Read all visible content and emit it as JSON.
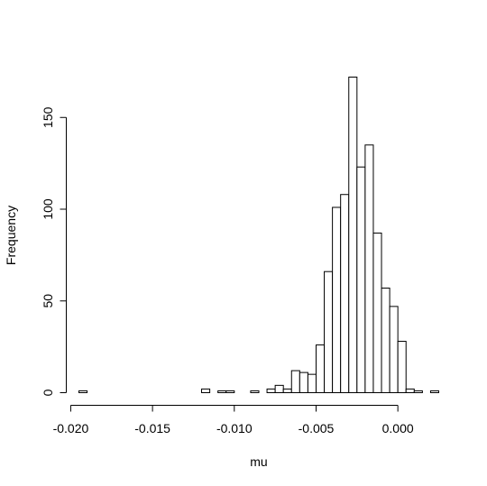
{
  "chart_data": {
    "type": "histogram",
    "title": "",
    "xlabel": "mu",
    "ylabel": "Frequency",
    "xlim": [
      -0.0195,
      0.0025
    ],
    "ylim": [
      0,
      172
    ],
    "bin_width": 0.0005,
    "x_ticks": [
      -0.02,
      -0.015,
      -0.01,
      -0.005,
      0.0
    ],
    "x_tick_labels": [
      "-0.020",
      "-0.015",
      "-0.010",
      "-0.005",
      "0.000"
    ],
    "y_ticks": [
      0,
      50,
      100,
      150
    ],
    "y_tick_labels": [
      "0",
      "50",
      "100",
      "150"
    ],
    "grid": false,
    "bins": [
      {
        "x0": -0.0195,
        "x1": -0.019,
        "count": 1
      },
      {
        "x0": -0.019,
        "x1": -0.0185,
        "count": 0
      },
      {
        "x0": -0.0185,
        "x1": -0.018,
        "count": 0
      },
      {
        "x0": -0.018,
        "x1": -0.0175,
        "count": 0
      },
      {
        "x0": -0.0175,
        "x1": -0.017,
        "count": 0
      },
      {
        "x0": -0.017,
        "x1": -0.0165,
        "count": 0
      },
      {
        "x0": -0.0165,
        "x1": -0.016,
        "count": 0
      },
      {
        "x0": -0.016,
        "x1": -0.0155,
        "count": 0
      },
      {
        "x0": -0.0155,
        "x1": -0.015,
        "count": 0
      },
      {
        "x0": -0.015,
        "x1": -0.0145,
        "count": 0
      },
      {
        "x0": -0.0145,
        "x1": -0.014,
        "count": 0
      },
      {
        "x0": -0.014,
        "x1": -0.0135,
        "count": 0
      },
      {
        "x0": -0.0135,
        "x1": -0.013,
        "count": 0
      },
      {
        "x0": -0.013,
        "x1": -0.0125,
        "count": 0
      },
      {
        "x0": -0.0125,
        "x1": -0.012,
        "count": 0
      },
      {
        "x0": -0.012,
        "x1": -0.0115,
        "count": 2
      },
      {
        "x0": -0.0115,
        "x1": -0.011,
        "count": 0
      },
      {
        "x0": -0.011,
        "x1": -0.0105,
        "count": 1
      },
      {
        "x0": -0.0105,
        "x1": -0.01,
        "count": 1
      },
      {
        "x0": -0.01,
        "x1": -0.0095,
        "count": 0
      },
      {
        "x0": -0.0095,
        "x1": -0.009,
        "count": 0
      },
      {
        "x0": -0.009,
        "x1": -0.0085,
        "count": 1
      },
      {
        "x0": -0.0085,
        "x1": -0.008,
        "count": 0
      },
      {
        "x0": -0.008,
        "x1": -0.0075,
        "count": 2
      },
      {
        "x0": -0.0075,
        "x1": -0.007,
        "count": 4
      },
      {
        "x0": -0.007,
        "x1": -0.0065,
        "count": 2
      },
      {
        "x0": -0.0065,
        "x1": -0.006,
        "count": 12
      },
      {
        "x0": -0.006,
        "x1": -0.0055,
        "count": 11
      },
      {
        "x0": -0.0055,
        "x1": -0.005,
        "count": 10
      },
      {
        "x0": -0.005,
        "x1": -0.0045,
        "count": 26
      },
      {
        "x0": -0.0045,
        "x1": -0.004,
        "count": 66
      },
      {
        "x0": -0.004,
        "x1": -0.0035,
        "count": 101
      },
      {
        "x0": -0.0035,
        "x1": -0.003,
        "count": 108
      },
      {
        "x0": -0.003,
        "x1": -0.0025,
        "count": 172
      },
      {
        "x0": -0.0025,
        "x1": -0.002,
        "count": 123
      },
      {
        "x0": -0.002,
        "x1": -0.0015,
        "count": 135
      },
      {
        "x0": -0.0015,
        "x1": -0.001,
        "count": 87
      },
      {
        "x0": -0.001,
        "x1": -0.0005,
        "count": 57
      },
      {
        "x0": -0.0005,
        "x1": 0.0,
        "count": 47
      },
      {
        "x0": 0.0,
        "x1": 0.0005,
        "count": 28
      },
      {
        "x0": 0.0005,
        "x1": 0.001,
        "count": 2
      },
      {
        "x0": 0.001,
        "x1": 0.0015,
        "count": 1
      },
      {
        "x0": 0.0015,
        "x1": 0.002,
        "count": 0
      },
      {
        "x0": 0.002,
        "x1": 0.0025,
        "count": 1
      }
    ]
  }
}
